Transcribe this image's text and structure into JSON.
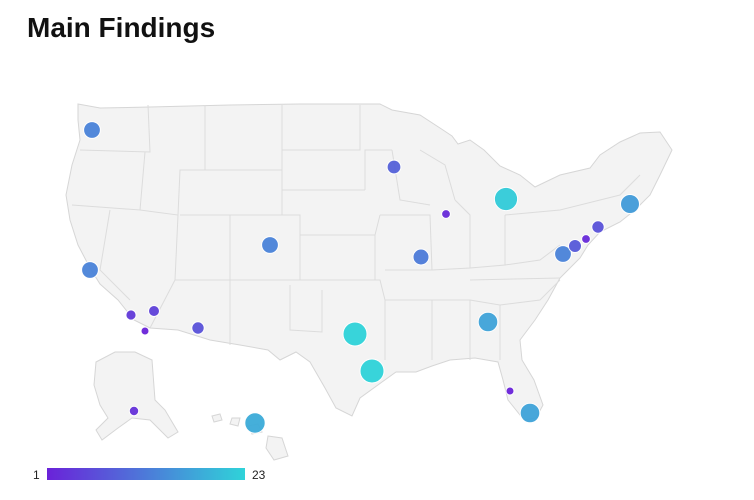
{
  "title": "Main Findings",
  "color_scale": {
    "min": 1,
    "max": 23,
    "low_color": "#6a22d9",
    "high_color": "#2fd3d9"
  },
  "legend": {
    "min_label": "1",
    "max_label": "23"
  },
  "markers": [
    {
      "name": "Seattle, WA",
      "value": 13
    },
    {
      "name": "San Francisco, CA",
      "value": 13
    },
    {
      "name": "Los Angeles, CA",
      "value": 4
    },
    {
      "name": "Las Vegas, NV",
      "value": 5
    },
    {
      "name": "San Diego, CA",
      "value": 1
    },
    {
      "name": "Phoenix, AZ",
      "value": 7
    },
    {
      "name": "Denver, CO",
      "value": 13
    },
    {
      "name": "Minneapolis, MN",
      "value": 9
    },
    {
      "name": "Chicago, IL",
      "value": 2
    },
    {
      "name": "Detroit, MI",
      "value": 22
    },
    {
      "name": "St. Louis, MO",
      "value": 12
    },
    {
      "name": "Dallas, TX",
      "value": 23
    },
    {
      "name": "Houston, TX",
      "value": 23
    },
    {
      "name": "Atlanta, GA",
      "value": 17
    },
    {
      "name": "Miami, FL",
      "value": 17
    },
    {
      "name": "Tampa, FL",
      "value": 1
    },
    {
      "name": "Washington, DC",
      "value": 13
    },
    {
      "name": "Baltimore, MD",
      "value": 8
    },
    {
      "name": "Philadelphia, PA",
      "value": 2
    },
    {
      "name": "New York, NY",
      "value": 7
    },
    {
      "name": "Boston, MA",
      "value": 16
    },
    {
      "name": "Anchorage, AK",
      "value": 3
    },
    {
      "name": "Honolulu, HI",
      "value": 18
    }
  ]
}
